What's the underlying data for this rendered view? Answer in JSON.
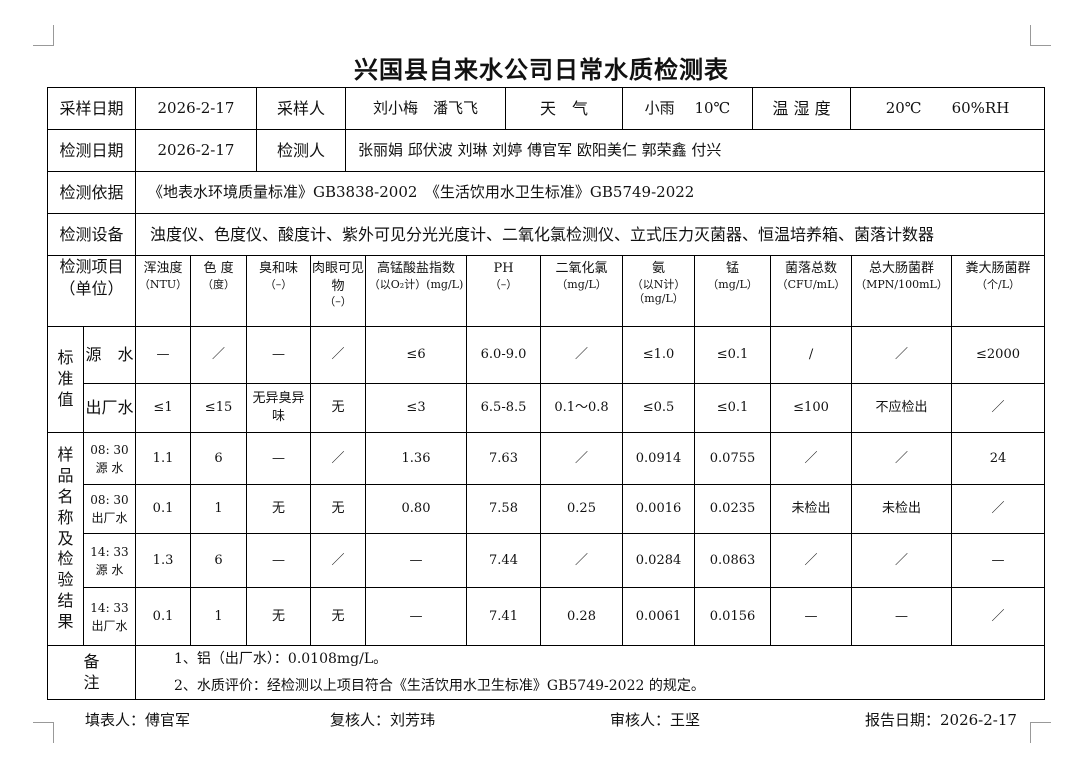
{
  "title": "兴国县自来水公司日常水质检测表",
  "info": {
    "sample_date_label": "采样日期",
    "sample_date": "2026-2-17",
    "sampler_label": "采样人",
    "samplers": "刘小梅　潘飞飞",
    "weather_label": "天　气",
    "weather": "小雨　 10℃",
    "humidity_label": "温 湿 度",
    "humidity": "20℃　　60%RH",
    "test_date_label": "检测日期",
    "test_date": "2026-2-17",
    "tester_label": "检测人",
    "testers": "张丽娟 邱伏波 刘琳 刘婷 傅官军 欧阳美仁 郭荣鑫 付兴",
    "basis_label": "检测依据",
    "basis": "《地表水环境质量标准》GB3838-2002　《生活饮用水卫生标准》GB5749-2022",
    "equipment_label": "检测设备",
    "equipment": "浊度仪、色度仪、酸度计、紫外可见分光光度计、二氧化氯检测仪、立式压力灭菌器、恒温培养箱、菌落计数器"
  },
  "table": {
    "item_header": "检测项目",
    "item_unit": "（单位）",
    "columns": [
      {
        "name": "浑浊度",
        "unit": "（NTU）"
      },
      {
        "name": "色 度",
        "unit": "（度）"
      },
      {
        "name": "臭和味",
        "unit": "（–）"
      },
      {
        "name": "肉眼可见物",
        "unit": "（–）"
      },
      {
        "name": "高锰酸盐指数",
        "unit": "（以O₂计）(mg/L)"
      },
      {
        "name": "PH",
        "unit": "（–）"
      },
      {
        "name": "二氧化氯",
        "unit": "（mg/L）"
      },
      {
        "name": "氨",
        "unit": "（以N计）（mg/L）"
      },
      {
        "name": "锰",
        "unit": "（mg/L）"
      },
      {
        "name": "菌落总数",
        "unit": "（CFU/mL）"
      },
      {
        "name": "总大肠菌群",
        "unit": "（MPN/100mL）"
      },
      {
        "name": "粪大肠菌群",
        "unit": "（个/L）"
      }
    ],
    "standard_label": "标准值",
    "standards": [
      {
        "label": "源　水",
        "values": [
          "—",
          "／",
          "—",
          "／",
          "≤6",
          "6.0-9.0",
          "／",
          "≤1.0",
          "≤0.1",
          "/",
          "／",
          "≤2000"
        ]
      },
      {
        "label": "出厂水",
        "values": [
          "≤1",
          "≤15",
          "无异臭异味",
          "无",
          "≤3",
          "6.5-8.5",
          "0.1～0.8",
          "≤0.5",
          "≤0.1",
          "≤100",
          "不应检出",
          "／"
        ]
      }
    ],
    "results_label": "样品名称及检验结果",
    "results": [
      {
        "time": "08: 30",
        "label": "源 水",
        "values": [
          "1.1",
          "6",
          "—",
          "／",
          "1.36",
          "7.63",
          "／",
          "0.0914",
          "0.0755",
          "／",
          "／",
          "24"
        ]
      },
      {
        "time": "08: 30",
        "label": "出厂水",
        "values": [
          "0.1",
          "1",
          "无",
          "无",
          "0.80",
          "7.58",
          "0.25",
          "0.0016",
          "0.0235",
          "未检出",
          "未检出",
          "／"
        ]
      },
      {
        "time": "14: 33",
        "label": "源 水",
        "values": [
          "1.3",
          "6",
          "—",
          "／",
          "—",
          "7.44",
          "／",
          "0.0284",
          "0.0863",
          "／",
          "／",
          "—"
        ]
      },
      {
        "time": "14: 33",
        "label": "出厂水",
        "values": [
          "0.1",
          "1",
          "无",
          "无",
          "—",
          "7.41",
          "0.28",
          "0.0061",
          "0.0156",
          "—",
          "—",
          "／"
        ]
      }
    ],
    "remarks_label": "备注",
    "remarks": [
      "1、铝（出厂水）：0.0108mg/L。",
      "2、水质评价：经检测以上项目符合《生活饮用水卫生标准》GB5749-2022 的规定。"
    ]
  },
  "footer": {
    "filler": "填表人：傅官军",
    "reviewer": "复核人：刘芳玮",
    "approver": "审核人：王坚",
    "report_date": "报告日期：2026-2-17"
  }
}
